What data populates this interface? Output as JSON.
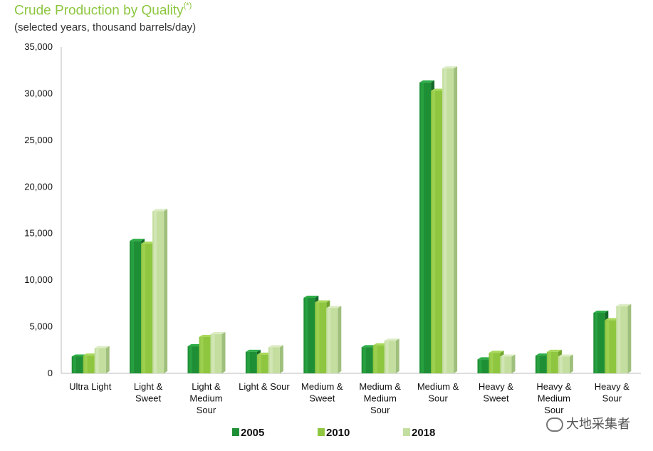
{
  "title": "Crude Production by Quality",
  "title_sup": "(*)",
  "subtitle": "(selected years, thousand barrels/day)",
  "watermark": "大地采集者",
  "colors": {
    "2005": "#1f8f36",
    "2010": "#8fc640",
    "2018": "#c4deA0"
  },
  "chart_data": {
    "type": "bar",
    "title": "Crude Production by Quality",
    "subtitle": "(selected years, thousand barrels/day)",
    "xlabel": "",
    "ylabel": "",
    "ylim": [
      0,
      35000
    ],
    "yticks": [
      "0",
      "5,000",
      "10,000",
      "15,000",
      "20,000",
      "25,000",
      "30,000",
      "35,000"
    ],
    "ytick_values": [
      0,
      5000,
      10000,
      15000,
      20000,
      25000,
      30000,
      35000
    ],
    "categories": [
      [
        "Ultra Light"
      ],
      [
        "Light &",
        "Sweet"
      ],
      [
        "Light &",
        "Medium",
        "Sour"
      ],
      [
        "Light & Sour"
      ],
      [
        "Medium &",
        "Sweet"
      ],
      [
        "Medium &",
        "Medium",
        "Sour"
      ],
      [
        "Medium &",
        "Sour"
      ],
      [
        "Heavy &",
        "Sweet"
      ],
      [
        "Heavy &",
        "Medium",
        "Sour"
      ],
      [
        "Heavy &",
        "Sour"
      ]
    ],
    "series": [
      {
        "name": "2005",
        "values": [
          1800,
          14200,
          2900,
          2300,
          8100,
          2800,
          31200,
          1500,
          1900,
          6500
        ]
      },
      {
        "name": "2010",
        "values": [
          1900,
          13900,
          3900,
          2000,
          7600,
          3000,
          30300,
          2200,
          2300,
          5700
        ]
      },
      {
        "name": "2018",
        "values": [
          2700,
          17400,
          4200,
          2800,
          7000,
          3500,
          32700,
          1800,
          1800,
          7200
        ]
      }
    ],
    "legend": [
      "2005",
      "2010",
      "2018"
    ],
    "legend_position": "bottom"
  }
}
